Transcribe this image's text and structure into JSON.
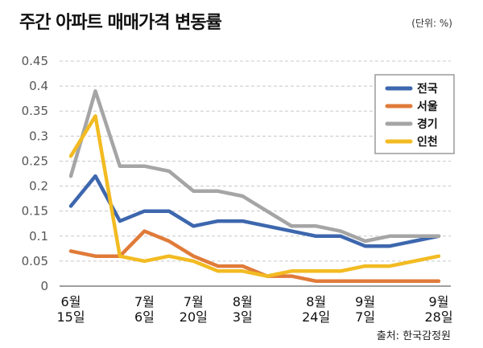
{
  "title": "주간 아파트 매매가격 변동률",
  "unit_label": "(단위: %)",
  "source_label": "출처: 한국감정원",
  "chart_data": {
    "type": "line",
    "title": "주간 아파트 매매가격 변동률",
    "xlabel": "",
    "ylabel": "(단위: %)",
    "ylim": [
      0,
      0.45
    ],
    "yticks": [
      0,
      0.05,
      0.1,
      0.15,
      0.2,
      0.25,
      0.3,
      0.35,
      0.4,
      0.45
    ],
    "ytick_labels": [
      "0",
      "0.05",
      "0.1",
      "0.15",
      "0.2",
      "0.25",
      "0.3",
      "0.35",
      "0.4",
      "0.45"
    ],
    "grid": true,
    "legend_position": "top-right",
    "x_count": 16,
    "x_labels": [
      {
        "index": 0,
        "line1": "6월",
        "line2": "15일"
      },
      {
        "index": 3,
        "line1": "7월",
        "line2": "6일"
      },
      {
        "index": 5,
        "line1": "7월",
        "line2": "20일"
      },
      {
        "index": 7,
        "line1": "8월",
        "line2": "3일"
      },
      {
        "index": 10,
        "line1": "8월",
        "line2": "24일"
      },
      {
        "index": 12,
        "line1": "9월",
        "line2": "7일"
      },
      {
        "index": 15,
        "line1": "9월",
        "line2": "28일"
      }
    ],
    "series": [
      {
        "name": "전국",
        "color": "#3d67ae",
        "values": [
          0.16,
          0.22,
          0.13,
          0.15,
          0.15,
          0.12,
          0.13,
          0.13,
          0.12,
          0.11,
          0.1,
          0.1,
          0.08,
          0.08,
          0.09,
          0.1
        ]
      },
      {
        "name": "서울",
        "color": "#e07b39",
        "values": [
          0.07,
          0.06,
          0.06,
          0.11,
          0.09,
          0.06,
          0.04,
          0.04,
          0.02,
          0.02,
          0.01,
          0.01,
          0.01,
          0.01,
          0.01,
          0.01
        ]
      },
      {
        "name": "경기",
        "color": "#a5a5a5",
        "values": [
          0.22,
          0.39,
          0.24,
          0.24,
          0.23,
          0.19,
          0.19,
          0.18,
          0.15,
          0.12,
          0.12,
          0.11,
          0.09,
          0.1,
          0.1,
          0.1
        ]
      },
      {
        "name": "인천",
        "color": "#f2bb22",
        "values": [
          0.26,
          0.34,
          0.06,
          0.05,
          0.06,
          0.05,
          0.03,
          0.03,
          0.02,
          0.03,
          0.03,
          0.03,
          0.04,
          0.04,
          0.05,
          0.06
        ]
      }
    ]
  }
}
